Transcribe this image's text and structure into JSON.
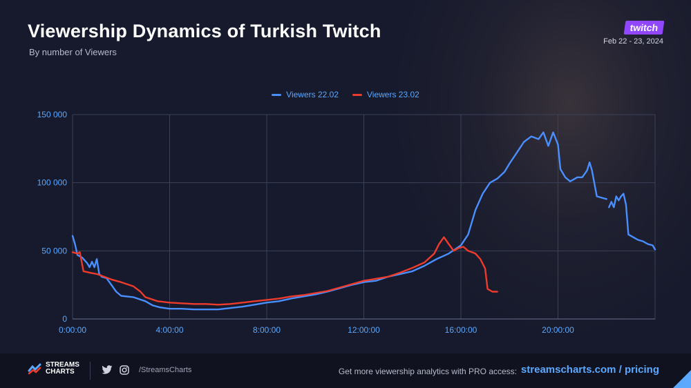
{
  "header": {
    "title": "Viewership Dynamics of Turkish Twitch",
    "subtitle": "By number of Viewers",
    "brand": "twitch",
    "date_range": "Feb 22 - 23, 2024"
  },
  "footer": {
    "logo_text": "STREAMS CHARTS",
    "handle": "/StreamsCharts",
    "promo_text": "Get more viewership analytics with PRO access:",
    "promo_link": "streamscharts.com / pricing"
  },
  "colors": {
    "series_22": "#4a8fff",
    "series_23": "#ef3b2c",
    "axis_text": "#5aa8ff",
    "grid": "#3b4158"
  },
  "chart_data": {
    "type": "line",
    "x_unit": "hours",
    "xlim": [
      0,
      24
    ],
    "ylim": [
      0,
      150000
    ],
    "x_ticks": [
      0,
      4,
      8,
      12,
      16,
      20
    ],
    "x_tick_labels": [
      "0:00:00",
      "4:00:00",
      "8:00:00",
      "12:00:00",
      "16:00:00",
      "20:00:00"
    ],
    "y_ticks": [
      0,
      50000,
      100000,
      150000
    ],
    "y_tick_labels": [
      "0",
      "50 000",
      "100 000",
      "150 000"
    ],
    "grid": true,
    "legend_position": "top-center",
    "series": [
      {
        "name": "Viewers 22.02",
        "color": "#4a8fff",
        "points": [
          [
            [
              0.0,
              61000
            ],
            [
              0.1,
              55000
            ],
            [
              0.2,
              47000
            ],
            [
              0.4,
              45000
            ],
            [
              0.6,
              41000
            ],
            [
              0.7,
              38000
            ],
            [
              0.8,
              42000
            ],
            [
              0.9,
              38000
            ],
            [
              1.0,
              44000
            ],
            [
              1.1,
              33000
            ],
            [
              1.2,
              31000
            ],
            [
              1.4,
              30000
            ],
            [
              1.6,
              25000
            ],
            [
              1.8,
              20000
            ],
            [
              2.0,
              17000
            ],
            [
              2.5,
              16000
            ],
            [
              3.0,
              13000
            ],
            [
              3.3,
              10000
            ],
            [
              3.6,
              8500
            ],
            [
              4.0,
              7500
            ],
            [
              4.5,
              7500
            ],
            [
              5.0,
              7000
            ],
            [
              5.5,
              7000
            ],
            [
              6.0,
              7000
            ],
            [
              6.5,
              8000
            ],
            [
              7.0,
              9000
            ],
            [
              7.5,
              10500
            ],
            [
              8.0,
              12000
            ],
            [
              8.5,
              13000
            ],
            [
              9.0,
              15000
            ],
            [
              9.5,
              16500
            ],
            [
              10.0,
              18000
            ],
            [
              10.5,
              20000
            ],
            [
              11.0,
              22500
            ],
            [
              11.5,
              25000
            ],
            [
              12.0,
              27000
            ],
            [
              12.5,
              28000
            ],
            [
              13.0,
              31000
            ],
            [
              13.5,
              33000
            ],
            [
              14.0,
              35000
            ],
            [
              14.5,
              39000
            ],
            [
              15.0,
              44000
            ],
            [
              15.5,
              48000
            ],
            [
              16.0,
              54000
            ],
            [
              16.3,
              62000
            ],
            [
              16.6,
              80000
            ],
            [
              16.9,
              92000
            ],
            [
              17.2,
              100000
            ],
            [
              17.5,
              103000
            ],
            [
              17.8,
              108000
            ],
            [
              18.0,
              114000
            ],
            [
              18.3,
              122000
            ],
            [
              18.6,
              130000
            ],
            [
              18.9,
              134000
            ],
            [
              19.2,
              132000
            ],
            [
              19.4,
              137000
            ],
            [
              19.6,
              127000
            ],
            [
              19.8,
              137000
            ],
            [
              20.0,
              128000
            ],
            [
              20.1,
              110000
            ],
            [
              20.3,
              104000
            ],
            [
              20.5,
              101000
            ],
            [
              20.8,
              104000
            ],
            [
              21.0,
              104000
            ],
            [
              21.2,
              109000
            ],
            [
              21.3,
              115000
            ],
            [
              21.4,
              109000
            ],
            [
              21.6,
              90000
            ],
            [
              21.8,
              89000
            ],
            [
              22.0,
              88000
            ]
          ],
          [
            [
              22.1,
              82000
            ],
            [
              22.2,
              86000
            ],
            [
              22.3,
              82000
            ],
            [
              22.4,
              90000
            ],
            [
              22.5,
              87000
            ],
            [
              22.6,
              90000
            ],
            [
              22.7,
              92000
            ],
            [
              22.8,
              84000
            ],
            [
              22.9,
              62000
            ],
            [
              23.1,
              60000
            ],
            [
              23.3,
              58000
            ],
            [
              23.5,
              57000
            ],
            [
              23.7,
              55000
            ],
            [
              23.9,
              54000
            ],
            [
              24.0,
              51000
            ]
          ]
        ]
      },
      {
        "name": "Viewers 23.02",
        "color": "#ef3b2c",
        "points": [
          [
            [
              0.0,
              49000
            ],
            [
              0.2,
              48000
            ],
            [
              0.3,
              49000
            ],
            [
              0.45,
              35000
            ],
            [
              0.7,
              34000
            ],
            [
              1.0,
              33000
            ],
            [
              1.3,
              31000
            ],
            [
              1.6,
              29000
            ],
            [
              2.0,
              27000
            ],
            [
              2.5,
              24000
            ],
            [
              2.8,
              20000
            ],
            [
              3.0,
              16000
            ],
            [
              3.5,
              13000
            ],
            [
              4.0,
              12000
            ],
            [
              4.5,
              11500
            ],
            [
              5.0,
              11000
            ],
            [
              5.5,
              11000
            ],
            [
              6.0,
              10500
            ],
            [
              6.5,
              11000
            ],
            [
              7.0,
              12000
            ],
            [
              7.5,
              13000
            ],
            [
              8.0,
              14000
            ],
            [
              8.5,
              15000
            ],
            [
              9.0,
              16500
            ],
            [
              9.5,
              17500
            ],
            [
              10.0,
              19000
            ],
            [
              10.5,
              20500
            ],
            [
              11.0,
              23000
            ],
            [
              11.5,
              25500
            ],
            [
              12.0,
              28000
            ],
            [
              12.5,
              29500
            ],
            [
              13.0,
              31000
            ],
            [
              13.5,
              34000
            ],
            [
              14.0,
              37500
            ],
            [
              14.5,
              41500
            ],
            [
              14.9,
              48000
            ],
            [
              15.1,
              55000
            ],
            [
              15.3,
              60000
            ],
            [
              15.5,
              55000
            ],
            [
              15.7,
              50000
            ],
            [
              15.9,
              52000
            ],
            [
              16.1,
              53000
            ],
            [
              16.3,
              50000
            ],
            [
              16.6,
              48000
            ],
            [
              16.8,
              44000
            ],
            [
              17.0,
              37000
            ],
            [
              17.1,
              22000
            ],
            [
              17.3,
              20000
            ],
            [
              17.5,
              20000
            ]
          ]
        ]
      }
    ]
  }
}
